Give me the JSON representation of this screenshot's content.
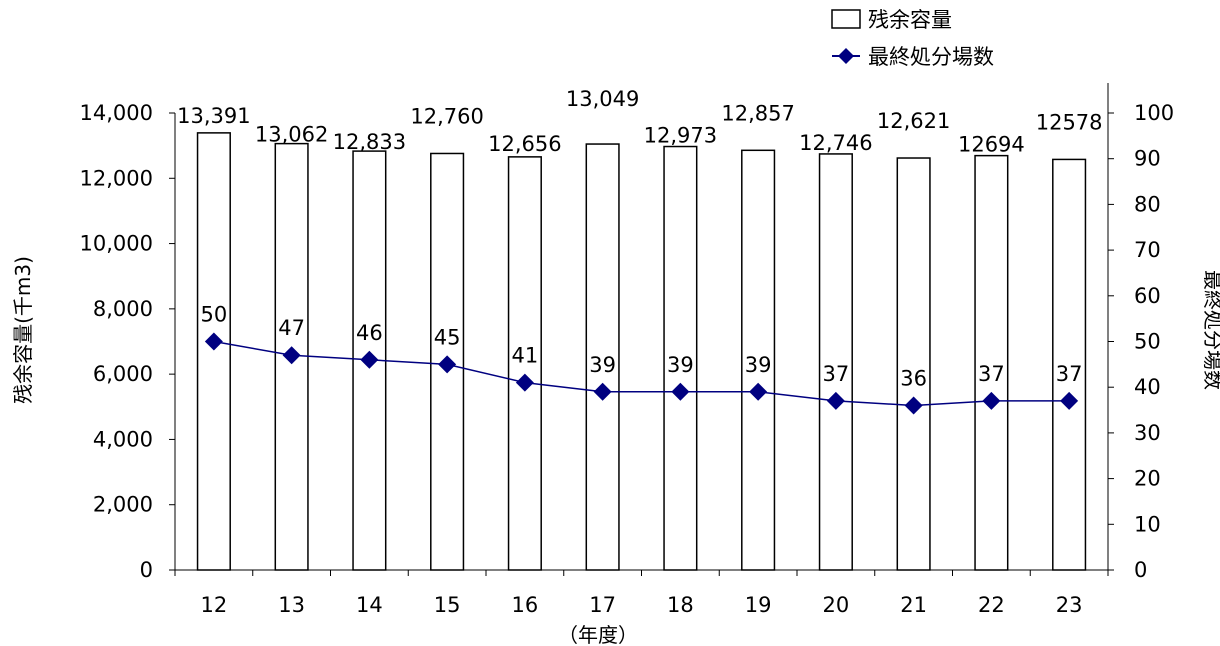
{
  "chart_data": {
    "type": "bar",
    "categories": [
      "12",
      "13",
      "14",
      "15",
      "16",
      "17",
      "18",
      "19",
      "20",
      "21",
      "22",
      "23"
    ],
    "series": [
      {
        "name": "残余容量",
        "type": "bar",
        "axis": "left",
        "values": [
          13391,
          13062,
          12833,
          12760,
          12656,
          13049,
          12973,
          12857,
          12746,
          12621,
          12694,
          12578
        ],
        "labels": [
          "13,391",
          "13,062",
          "12,833",
          "12,760",
          "12,656",
          "13,049",
          "12,973",
          "12,857",
          "12,746",
          "12,621",
          "12694",
          "12578"
        ]
      },
      {
        "name": "最終処分場数",
        "type": "line",
        "axis": "right",
        "values": [
          50,
          47,
          46,
          45,
          41,
          39,
          39,
          39,
          37,
          36,
          37,
          37
        ],
        "labels": [
          "50",
          "47",
          "46",
          "45",
          "41",
          "39",
          "39",
          "39",
          "37",
          "36",
          "37",
          "37"
        ]
      }
    ],
    "xlabel": "（年度）",
    "ylabel_left": "残余容量(千m3)",
    "ylabel_right": "最終処分場数",
    "ylim_left": [
      0,
      14000
    ],
    "yticks_left": [
      "0",
      "2,000",
      "4,000",
      "6,000",
      "8,000",
      "10,000",
      "12,000",
      "14,000"
    ],
    "ylim_right": [
      0,
      100
    ],
    "yticks_right": [
      "0",
      "10",
      "20",
      "30",
      "40",
      "50",
      "60",
      "70",
      "80",
      "90",
      "100"
    ],
    "grid": false,
    "legend": "top-right",
    "colors": {
      "bar_fill": "#ffffff",
      "bar_stroke": "#000000",
      "line": "#000080",
      "marker": "#000080"
    }
  }
}
